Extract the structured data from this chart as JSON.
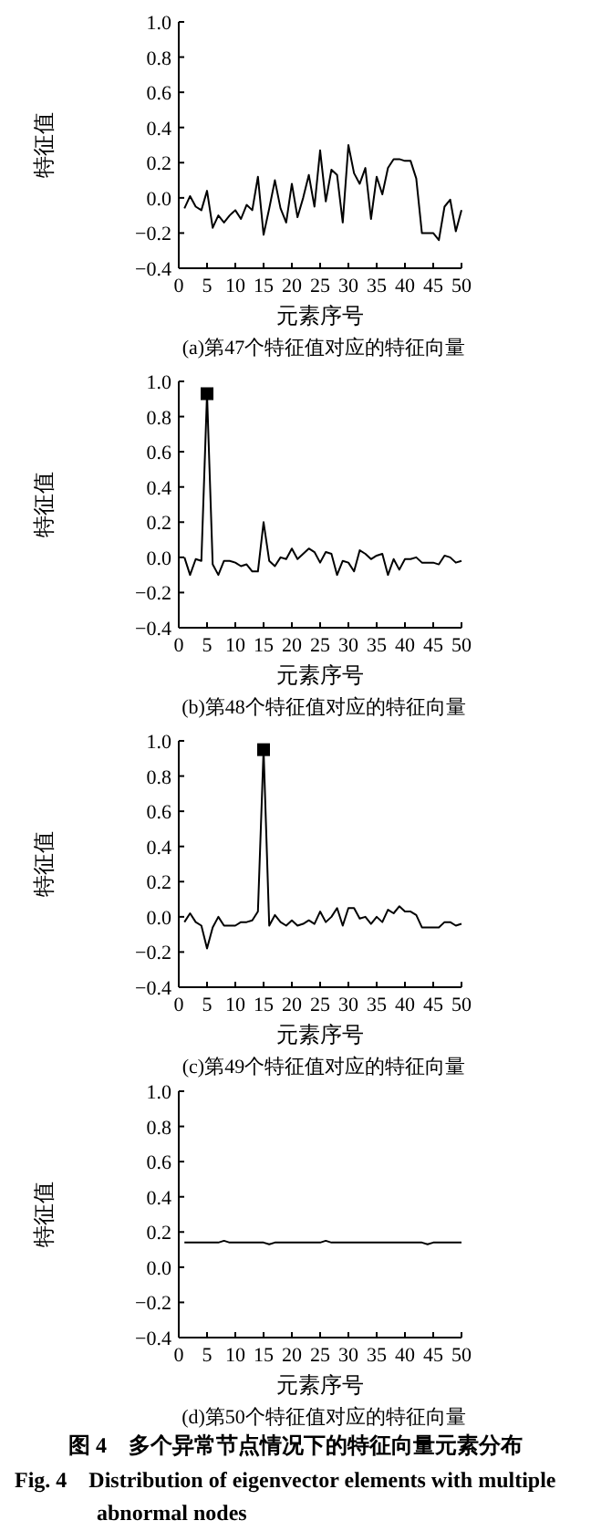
{
  "chart_data": [
    {
      "type": "line",
      "title": "(a)第47个特征值对应的特征向量",
      "xlabel": "元素序号",
      "ylabel": "特征值",
      "xlim": [
        0,
        50
      ],
      "xticks": [
        0,
        5,
        10,
        15,
        20,
        25,
        30,
        35,
        40,
        45,
        50
      ],
      "ylim": [
        -0.4,
        1.0
      ],
      "yticks": [
        {
          "value": -0.4,
          "label": "−0.4"
        },
        {
          "value": -0.2,
          "label": "−0.2"
        },
        {
          "value": 0,
          "label": "0.0"
        },
        0.2,
        0.4,
        0.6,
        0.8,
        {
          "value": 1.0,
          "label": "1.0"
        }
      ],
      "grid": false,
      "series": [
        {
          "color": "#000000",
          "x": [
            1,
            2,
            3,
            4,
            5,
            6,
            7,
            8,
            9,
            10,
            11,
            12,
            13,
            14,
            15,
            16,
            17,
            18,
            19,
            20,
            21,
            22,
            23,
            24,
            25,
            26,
            27,
            28,
            29,
            30,
            31,
            32,
            33,
            34,
            35,
            36,
            37,
            38,
            39,
            40,
            41,
            42,
            43,
            44,
            45,
            46,
            47,
            48,
            49,
            50
          ],
          "values": [
            -0.06,
            0.01,
            -0.05,
            -0.07,
            0.04,
            -0.17,
            -0.1,
            -0.14,
            -0.1,
            -0.07,
            -0.12,
            -0.04,
            -0.07,
            0.12,
            -0.21,
            -0.06,
            0.1,
            -0.06,
            -0.14,
            0.08,
            -0.11,
            0.0,
            0.13,
            -0.05,
            0.27,
            -0.02,
            0.16,
            0.13,
            -0.14,
            0.3,
            0.14,
            0.08,
            0.17,
            -0.12,
            0.12,
            0.02,
            0.17,
            0.22,
            0.22,
            0.21,
            0.21,
            0.11,
            -0.2,
            -0.2,
            -0.2,
            -0.24,
            -0.05,
            -0.01,
            -0.19,
            -0.07
          ]
        }
      ]
    },
    {
      "type": "line",
      "title": "(b)第48个特征值对应的特征向量",
      "xlabel": "元素序号",
      "ylabel": "特征值",
      "xlim": [
        0,
        50
      ],
      "xticks": [
        0,
        5,
        10,
        15,
        20,
        25,
        30,
        35,
        40,
        45,
        50
      ],
      "ylim": [
        -0.4,
        1.0
      ],
      "yticks": [
        {
          "value": -0.4,
          "label": "−0.4"
        },
        {
          "value": -0.2,
          "label": "−0.2"
        },
        {
          "value": 0,
          "label": "0.0"
        },
        0.2,
        0.4,
        0.6,
        0.8,
        {
          "value": 1.0,
          "label": "1.0"
        }
      ],
      "grid": false,
      "series": [
        {
          "color": "#000000",
          "x": [
            1,
            2,
            3,
            4,
            5,
            6,
            7,
            8,
            9,
            10,
            11,
            12,
            13,
            14,
            15,
            16,
            17,
            18,
            19,
            20,
            21,
            22,
            23,
            24,
            25,
            26,
            27,
            28,
            29,
            30,
            31,
            32,
            33,
            34,
            35,
            36,
            37,
            38,
            39,
            40,
            41,
            42,
            43,
            44,
            45,
            46,
            47,
            48,
            49,
            50
          ],
          "values": [
            0.0,
            -0.1,
            -0.01,
            -0.02,
            0.93,
            -0.04,
            -0.1,
            -0.02,
            -0.02,
            -0.03,
            -0.05,
            -0.04,
            -0.08,
            -0.08,
            0.2,
            -0.02,
            -0.05,
            0.0,
            -0.01,
            0.05,
            -0.01,
            0.02,
            0.05,
            0.03,
            -0.03,
            0.03,
            0.02,
            -0.1,
            -0.02,
            -0.03,
            -0.08,
            0.04,
            0.02,
            -0.01,
            0.01,
            0.02,
            -0.1,
            -0.01,
            -0.07,
            -0.01,
            -0.01,
            0.0,
            -0.03,
            -0.03,
            -0.03,
            -0.04,
            0.01,
            0.0,
            -0.03,
            -0.02
          ]
        },
        {
          "type": "scatter",
          "marker": "square",
          "color": "#000000",
          "x": [
            5
          ],
          "values": [
            0.93
          ]
        }
      ]
    },
    {
      "type": "line",
      "title": "(c)第49个特征值对应的特征向量",
      "xlabel": "元素序号",
      "ylabel": "特征值",
      "xlim": [
        0,
        50
      ],
      "xticks": [
        0,
        5,
        10,
        15,
        20,
        25,
        30,
        35,
        40,
        45,
        50
      ],
      "ylim": [
        -0.4,
        1.0
      ],
      "yticks": [
        {
          "value": -0.4,
          "label": "−0.4"
        },
        {
          "value": -0.2,
          "label": "−0.2"
        },
        {
          "value": 0,
          "label": "0.0"
        },
        0.2,
        0.4,
        0.6,
        0.8,
        {
          "value": 1.0,
          "label": "1.0"
        }
      ],
      "grid": false,
      "series": [
        {
          "color": "#000000",
          "x": [
            1,
            2,
            3,
            4,
            5,
            6,
            7,
            8,
            9,
            10,
            11,
            12,
            13,
            14,
            15,
            16,
            17,
            18,
            19,
            20,
            21,
            22,
            23,
            24,
            25,
            26,
            27,
            28,
            29,
            30,
            31,
            32,
            33,
            34,
            35,
            36,
            37,
            38,
            39,
            40,
            41,
            42,
            43,
            44,
            45,
            46,
            47,
            48,
            49,
            50
          ],
          "values": [
            -0.03,
            0.02,
            -0.03,
            -0.05,
            -0.18,
            -0.06,
            0.0,
            -0.05,
            -0.05,
            -0.05,
            -0.03,
            -0.03,
            -0.02,
            0.03,
            0.95,
            -0.05,
            0.01,
            -0.03,
            -0.05,
            -0.02,
            -0.05,
            -0.04,
            -0.02,
            -0.04,
            0.03,
            -0.03,
            0.0,
            0.05,
            -0.05,
            0.05,
            0.05,
            -0.01,
            0.0,
            -0.04,
            0.0,
            -0.03,
            0.04,
            0.02,
            0.06,
            0.03,
            0.03,
            0.01,
            -0.06,
            -0.06,
            -0.06,
            -0.06,
            -0.03,
            -0.03,
            -0.05,
            -0.04
          ]
        },
        {
          "type": "scatter",
          "marker": "square",
          "color": "#000000",
          "x": [
            15
          ],
          "values": [
            0.95
          ]
        }
      ]
    },
    {
      "type": "line",
      "title": "(d)第50个特征值对应的特征向量",
      "xlabel": "元素序号",
      "ylabel": "特征值",
      "xlim": [
        0,
        50
      ],
      "xticks": [
        0,
        5,
        10,
        15,
        20,
        25,
        30,
        35,
        40,
        45,
        50
      ],
      "ylim": [
        -0.4,
        1.0
      ],
      "yticks": [
        {
          "value": -0.4,
          "label": "−0.4"
        },
        {
          "value": -0.2,
          "label": "−0.2"
        },
        {
          "value": 0,
          "label": "0.0"
        },
        0.2,
        0.4,
        0.6,
        0.8,
        {
          "value": 1.0,
          "label": "1.0"
        }
      ],
      "grid": false,
      "series": [
        {
          "color": "#000000",
          "x": [
            1,
            2,
            3,
            4,
            5,
            6,
            7,
            8,
            9,
            10,
            11,
            12,
            13,
            14,
            15,
            16,
            17,
            18,
            19,
            20,
            21,
            22,
            23,
            24,
            25,
            26,
            27,
            28,
            29,
            30,
            31,
            32,
            33,
            34,
            35,
            36,
            37,
            38,
            39,
            40,
            41,
            42,
            43,
            44,
            45,
            46,
            47,
            48,
            49,
            50
          ],
          "values": [
            0.14,
            0.14,
            0.14,
            0.14,
            0.14,
            0.14,
            0.14,
            0.15,
            0.14,
            0.14,
            0.14,
            0.14,
            0.14,
            0.14,
            0.14,
            0.13,
            0.14,
            0.14,
            0.14,
            0.14,
            0.14,
            0.14,
            0.14,
            0.14,
            0.14,
            0.15,
            0.14,
            0.14,
            0.14,
            0.14,
            0.14,
            0.14,
            0.14,
            0.14,
            0.14,
            0.14,
            0.14,
            0.14,
            0.14,
            0.14,
            0.14,
            0.14,
            0.14,
            0.13,
            0.14,
            0.14,
            0.14,
            0.14,
            0.14,
            0.14
          ]
        }
      ],
      "annotations": [
        "图 4　多个异常节点情况下的特征向量元素分布",
        "Fig. 4　Distribution of eigenvector elements with multiple abnormal nodes"
      ]
    }
  ]
}
